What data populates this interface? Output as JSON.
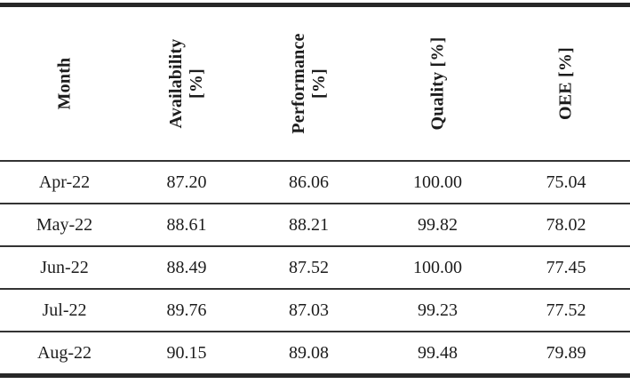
{
  "table": {
    "columns": [
      {
        "line1": "Month"
      },
      {
        "line1": "Availability",
        "line2": "[%]"
      },
      {
        "line1": "Performance",
        "line2": "[%]"
      },
      {
        "line1": "Quality [%]"
      },
      {
        "line1": "OEE [%]"
      }
    ],
    "rows": [
      {
        "month": "Apr-22",
        "availability": "87.20",
        "performance": "86.06",
        "quality": "100.00",
        "oee": "75.04"
      },
      {
        "month": "May-22",
        "availability": "88.61",
        "performance": "88.21",
        "quality": "99.82",
        "oee": "78.02"
      },
      {
        "month": "Jun-22",
        "availability": "88.49",
        "performance": "87.52",
        "quality": "100.00",
        "oee": "77.45"
      },
      {
        "month": "Jul-22",
        "availability": "89.76",
        "performance": "87.03",
        "quality": "99.23",
        "oee": "77.52"
      },
      {
        "month": "Aug-22",
        "availability": "90.15",
        "performance": "89.08",
        "quality": "99.48",
        "oee": "79.89"
      }
    ]
  },
  "colors": {
    "rule_thick": "#272727",
    "rule_thin": "#333333",
    "text": "#1c1c1c",
    "background": "#ffffff"
  }
}
